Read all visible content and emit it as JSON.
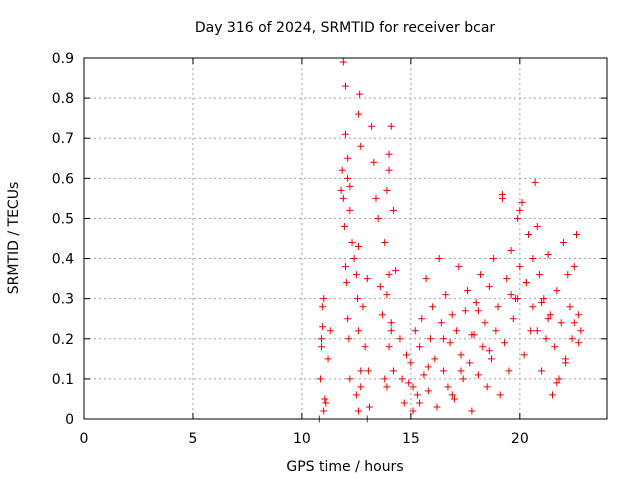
{
  "chart_data": {
    "type": "scatter",
    "title": "Day 316 of 2024, SRMTID for receiver bcar",
    "xlabel": "GPS time / hours",
    "ylabel": "SRMTID / TECUs",
    "xlim": [
      0,
      24
    ],
    "ylim": [
      0,
      0.9
    ],
    "grid": true,
    "x_ticks": [
      0,
      5,
      10,
      15,
      20
    ],
    "y_ticks": [
      0,
      0.1,
      0.2,
      0.3,
      0.4,
      0.5,
      0.6,
      0.7,
      0.8,
      0.9
    ],
    "x_tick_labels": [
      "0",
      "5",
      "10",
      "15",
      "20"
    ],
    "y_tick_labels": [
      "0",
      "0.1",
      "0.2",
      "0.3",
      "0.4",
      "0.5",
      "0.6",
      "0.7",
      "0.8",
      "0.9"
    ],
    "marker": "plus",
    "color": "#ee0000",
    "series": [
      {
        "name": "bcar",
        "x": [
          10.8,
          10.85,
          10.9,
          10.95,
          11.0,
          11.05,
          10.9,
          10.95,
          11.0,
          11.1,
          11.2,
          11.3,
          11.8,
          11.85,
          11.9,
          11.95,
          12.0,
          12.05,
          12.1,
          12.15,
          12.2,
          12.0,
          12.1,
          12.2,
          11.9,
          12.0,
          12.1,
          12.3,
          12.4,
          12.5,
          12.6,
          12.65,
          12.7,
          12.55,
          12.6,
          12.7,
          12.5,
          12.6,
          12.7,
          12.8,
          12.9,
          13.0,
          13.0,
          13.05,
          13.1,
          13.2,
          13.3,
          13.4,
          13.5,
          13.6,
          13.7,
          13.8,
          13.9,
          14.0,
          14.1,
          14.2,
          13.8,
          13.9,
          14.0,
          14.1,
          13.9,
          14.0,
          14.1,
          14.2,
          14.3,
          14.5,
          14.6,
          14.7,
          14.8,
          14.9,
          15.0,
          15.1,
          15.2,
          15.3,
          15.4,
          15.5,
          15.6,
          15.7,
          15.8,
          15.9,
          16.0,
          16.1,
          16.2,
          16.3,
          16.4,
          16.5,
          16.6,
          16.7,
          16.8,
          16.9,
          17.0,
          17.1,
          17.2,
          17.3,
          17.4,
          17.5,
          17.6,
          17.7,
          17.8,
          17.9,
          18.0,
          18.1,
          18.2,
          18.3,
          18.4,
          18.5,
          18.6,
          18.7,
          18.8,
          18.9,
          19.0,
          19.1,
          19.2,
          19.3,
          19.4,
          19.5,
          19.6,
          19.7,
          19.8,
          19.9,
          20.0,
          20.1,
          20.2,
          20.3,
          20.4,
          20.5,
          20.6,
          20.7,
          20.8,
          20.9,
          21.0,
          21.1,
          21.2,
          21.3,
          21.4,
          21.5,
          21.6,
          21.7,
          21.8,
          21.9,
          22.0,
          22.1,
          22.2,
          22.3,
          22.4,
          22.5,
          22.6,
          22.7,
          22.8,
          12.6,
          12.2,
          14.0,
          19.2,
          20.0,
          20.6,
          21.0,
          15.1,
          16.5,
          17.3,
          18.1,
          19.6,
          20.8,
          21.7,
          22.5,
          15.8,
          16.9,
          18.6,
          19.9,
          21.3,
          22.1,
          15.4,
          17.8,
          20.3,
          22.7
        ],
        "y": [
          0.0,
          0.1,
          0.18,
          0.23,
          0.3,
          0.05,
          0.2,
          0.28,
          0.02,
          0.04,
          0.15,
          0.22,
          0.57,
          0.62,
          0.55,
          0.48,
          0.38,
          0.34,
          0.25,
          0.2,
          0.1,
          0.71,
          0.65,
          0.52,
          0.89,
          0.83,
          0.6,
          0.44,
          0.4,
          0.36,
          0.76,
          0.81,
          0.68,
          0.3,
          0.22,
          0.12,
          0.06,
          0.02,
          0.08,
          0.28,
          0.18,
          0.0,
          0.35,
          0.12,
          0.03,
          0.73,
          0.64,
          0.55,
          0.5,
          0.33,
          0.26,
          0.44,
          0.57,
          0.62,
          0.73,
          0.52,
          0.1,
          0.08,
          0.36,
          0.22,
          0.31,
          0.18,
          0.24,
          0.12,
          0.37,
          0.2,
          0.1,
          0.04,
          0.16,
          0.09,
          0.14,
          0.02,
          0.22,
          0.06,
          0.18,
          0.25,
          0.11,
          0.35,
          0.07,
          0.2,
          0.28,
          0.15,
          0.03,
          0.4,
          0.24,
          0.12,
          0.31,
          0.08,
          0.19,
          0.26,
          0.05,
          0.22,
          0.38,
          0.16,
          0.1,
          0.27,
          0.32,
          0.14,
          0.02,
          0.21,
          0.29,
          0.11,
          0.36,
          0.18,
          0.24,
          0.08,
          0.33,
          0.15,
          0.4,
          0.22,
          0.28,
          0.06,
          0.56,
          0.19,
          0.35,
          0.12,
          0.42,
          0.25,
          0.3,
          0.5,
          0.38,
          0.54,
          0.16,
          0.34,
          0.46,
          0.22,
          0.28,
          0.59,
          0.48,
          0.36,
          0.12,
          0.3,
          0.2,
          0.41,
          0.26,
          0.06,
          0.18,
          0.32,
          0.1,
          0.24,
          0.44,
          0.14,
          0.36,
          0.28,
          0.2,
          0.38,
          0.46,
          0.26,
          0.22,
          0.43,
          0.58,
          0.66,
          0.55,
          0.52,
          0.4,
          0.29,
          0.08,
          0.2,
          0.12,
          0.27,
          0.31,
          0.22,
          0.09,
          0.24,
          0.13,
          0.06,
          0.17,
          0.3,
          0.25,
          0.15,
          0.04,
          0.21,
          0.34,
          0.19
        ]
      }
    ]
  }
}
